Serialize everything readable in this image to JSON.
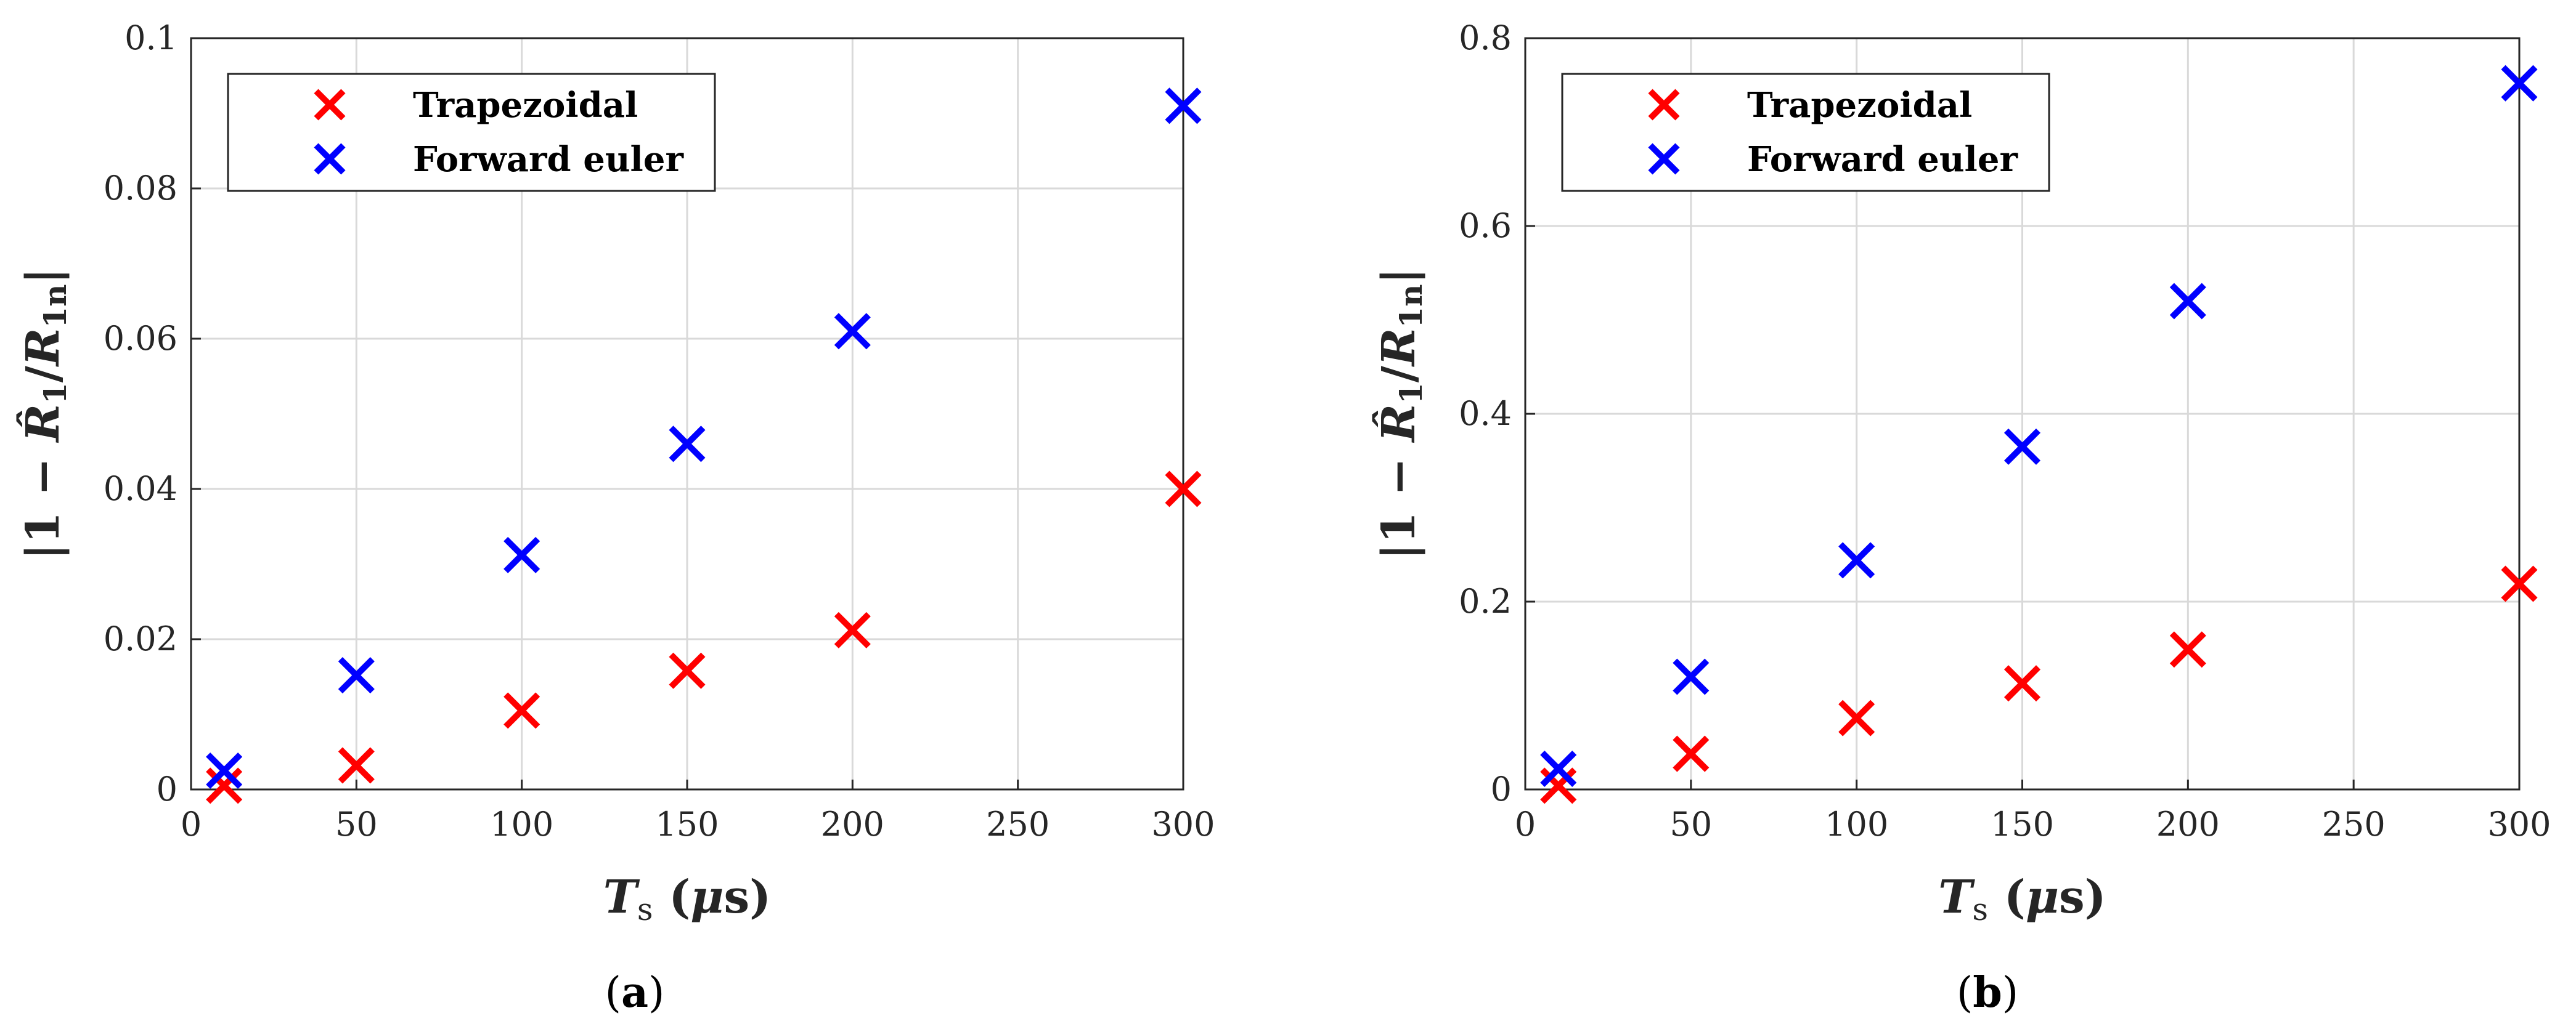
{
  "colors": {
    "trapezoidal": "#ff0000",
    "forward_euler": "#0000ff"
  },
  "chart_data": [
    {
      "type": "scatter",
      "panel_label": "(a)",
      "xlabel": "T_s (μs)",
      "ylabel": "|1 − R̂_1 / R_1n|",
      "xlim": [
        0,
        300
      ],
      "ylim": [
        0,
        0.1
      ],
      "xticks": [
        "0",
        "50",
        "100",
        "150",
        "200",
        "250",
        "300"
      ],
      "yticks": [
        "0",
        "0.02",
        "0.04",
        "0.06",
        "0.08",
        "0.1"
      ],
      "x": [
        10,
        50,
        100,
        150,
        200,
        300
      ],
      "grid": true,
      "legend_position": "top-left",
      "marker": "x",
      "series": [
        {
          "name": "Trapezoidal",
          "color": "#ff0000",
          "values": [
            0.0005,
            0.0032,
            0.0105,
            0.0158,
            0.0212,
            0.04
          ]
        },
        {
          "name": "Forward euler",
          "color": "#0000ff",
          "values": [
            0.0025,
            0.0152,
            0.0312,
            0.046,
            0.061,
            0.091
          ]
        }
      ]
    },
    {
      "type": "scatter",
      "panel_label": "(b)",
      "xlabel": "T_s (μs)",
      "ylabel": "|1 − R̂_1 / R_1n|",
      "xlim": [
        0,
        300
      ],
      "ylim": [
        0,
        0.8
      ],
      "xticks": [
        "0",
        "50",
        "100",
        "150",
        "200",
        "250",
        "300"
      ],
      "yticks": [
        "0",
        "0.2",
        "0.4",
        "0.6",
        "0.8"
      ],
      "x": [
        10,
        50,
        100,
        150,
        200,
        300
      ],
      "grid": true,
      "legend_position": "top-left",
      "marker": "x",
      "series": [
        {
          "name": "Trapezoidal",
          "color": "#ff0000",
          "values": [
            0.004,
            0.038,
            0.076,
            0.113,
            0.149,
            0.219
          ]
        },
        {
          "name": "Forward euler",
          "color": "#0000ff",
          "values": [
            0.022,
            0.12,
            0.244,
            0.365,
            0.52,
            0.752
          ]
        }
      ]
    }
  ]
}
